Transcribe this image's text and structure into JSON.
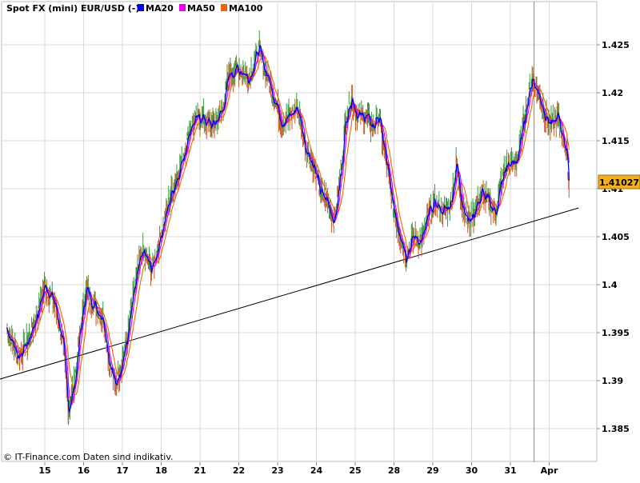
{
  "chart_data": {
    "type": "line",
    "title": "Spot FX (mini) EUR/USD (-)",
    "footer": "© IT-Finance.com Daten sind indikativ.",
    "ylim": [
      1.3815,
      1.4295
    ],
    "yticks": [
      "1.385",
      "1.39",
      "1.395",
      "1.4",
      "1.405",
      "1.41",
      "1.415",
      "1.42",
      "1.425"
    ],
    "xticks": [
      "15",
      "16",
      "17",
      "18",
      "21",
      "22",
      "23",
      "24",
      "25",
      "28",
      "29",
      "30",
      "31",
      "Apr"
    ],
    "last_price": "1.41027",
    "grid": true,
    "legend_position": "top-left",
    "colors": {
      "price_up": "#3a9a3a",
      "price_down": "#c85a2a",
      "ma20": "#0000ee",
      "ma50": "#ee00ee",
      "ma100": "#ee6600",
      "last_price_box": "#f2b020",
      "grid": "#d8d8d8"
    },
    "legend": [
      {
        "name": "MA20",
        "color": "#0000ee"
      },
      {
        "name": "MA50",
        "color": "#ee00ee"
      },
      {
        "name": "MA100",
        "color": "#ee6600"
      }
    ],
    "price_path": [
      [
        0.0,
        1.3955
      ],
      [
        0.3,
        1.3925
      ],
      [
        0.55,
        1.394
      ],
      [
        0.8,
        1.397
      ],
      [
        1.0,
        1.4
      ],
      [
        1.25,
        1.398
      ],
      [
        1.45,
        1.394
      ],
      [
        1.6,
        1.387
      ],
      [
        1.75,
        1.3895
      ],
      [
        1.9,
        1.395
      ],
      [
        2.05,
        1.3995
      ],
      [
        2.25,
        1.398
      ],
      [
        2.5,
        1.3965
      ],
      [
        2.65,
        1.392
      ],
      [
        2.8,
        1.3895
      ],
      [
        2.95,
        1.3915
      ],
      [
        3.1,
        1.394
      ],
      [
        3.3,
        1.3995
      ],
      [
        3.5,
        1.4035
      ],
      [
        3.75,
        1.4015
      ],
      [
        4.0,
        1.4055
      ],
      [
        4.25,
        1.4095
      ],
      [
        4.5,
        1.4125
      ],
      [
        4.75,
        1.4165
      ],
      [
        5.0,
        1.4175
      ],
      [
        5.3,
        1.4165
      ],
      [
        5.55,
        1.418
      ],
      [
        5.75,
        1.422
      ],
      [
        6.0,
        1.4225
      ],
      [
        6.25,
        1.4215
      ],
      [
        6.5,
        1.4245
      ],
      [
        6.7,
        1.422
      ],
      [
        6.9,
        1.4195
      ],
      [
        7.1,
        1.417
      ],
      [
        7.3,
        1.4175
      ],
      [
        7.5,
        1.4185
      ],
      [
        7.7,
        1.4145
      ],
      [
        7.9,
        1.4125
      ],
      [
        8.1,
        1.4095
      ],
      [
        8.3,
        1.4085
      ],
      [
        8.45,
        1.4065
      ],
      [
        8.6,
        1.411
      ],
      [
        8.75,
        1.4175
      ],
      [
        8.9,
        1.4195
      ],
      [
        9.05,
        1.4175
      ],
      [
        9.25,
        1.4175
      ],
      [
        9.45,
        1.4165
      ],
      [
        9.6,
        1.4175
      ],
      [
        9.8,
        1.4125
      ],
      [
        9.95,
        1.4085
      ],
      [
        10.1,
        1.406
      ],
      [
        10.3,
        1.403
      ],
      [
        10.5,
        1.405
      ],
      [
        10.7,
        1.4045
      ],
      [
        10.9,
        1.4075
      ],
      [
        11.05,
        1.4085
      ],
      [
        11.25,
        1.4075
      ],
      [
        11.45,
        1.4085
      ],
      [
        11.6,
        1.4125
      ],
      [
        11.75,
        1.4085
      ],
      [
        11.9,
        1.4065
      ],
      [
        12.05,
        1.4075
      ],
      [
        12.25,
        1.4095
      ],
      [
        12.45,
        1.4085
      ],
      [
        12.6,
        1.4075
      ],
      [
        12.75,
        1.4105
      ],
      [
        12.9,
        1.4125
      ],
      [
        13.05,
        1.4125
      ],
      [
        13.2,
        1.4135
      ],
      [
        13.35,
        1.4175
      ],
      [
        13.55,
        1.4215
      ],
      [
        13.75,
        1.4195
      ],
      [
        13.9,
        1.4175
      ],
      [
        14.05,
        1.4165
      ],
      [
        14.2,
        1.4175
      ],
      [
        14.35,
        1.4155
      ],
      [
        14.45,
        1.4135
      ],
      [
        14.5,
        1.4103
      ]
    ],
    "support_line": [
      [
        -0.3,
        1.39
      ],
      [
        14.75,
        1.408
      ]
    ],
    "vertical_marker_x": 13.6
  }
}
